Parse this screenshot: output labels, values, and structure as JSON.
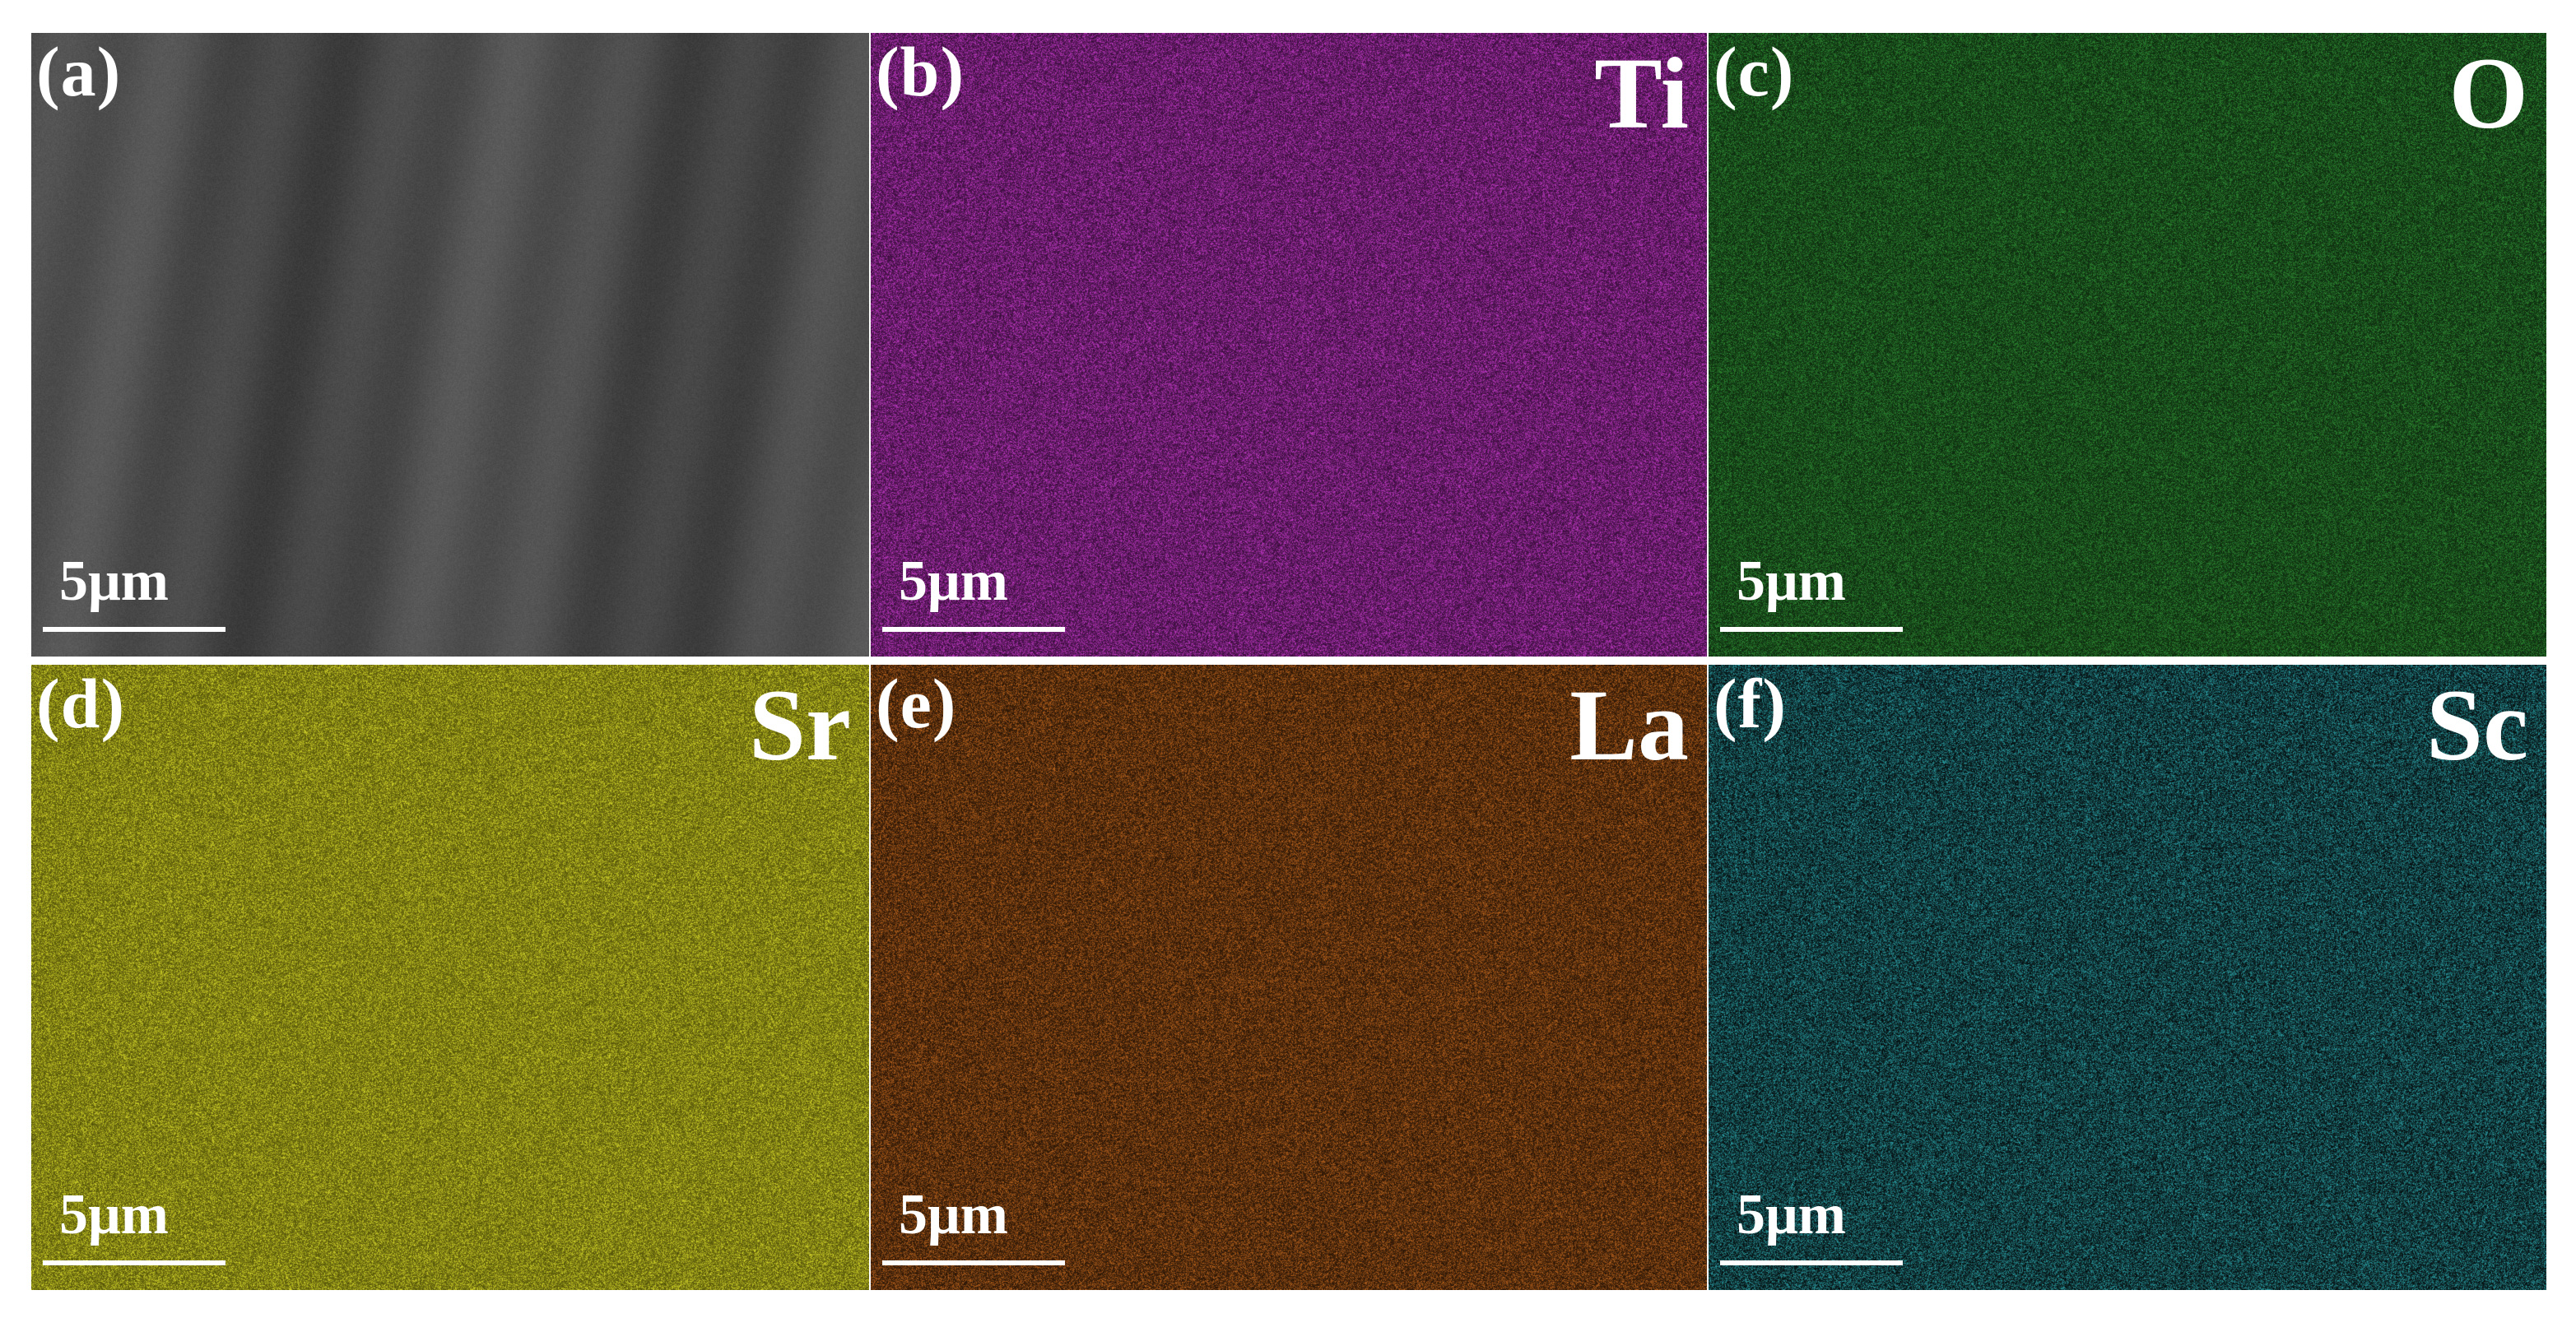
{
  "panels": [
    {
      "letter": "(a)",
      "element": "",
      "scale": "5μm",
      "colors": {
        "base": "#4d4d4d",
        "dot": "#6a6a6a"
      },
      "type": "sem"
    },
    {
      "letter": "(b)",
      "element": "Ti",
      "scale": "5μm",
      "colors": {
        "base": "#3a0d3c",
        "dot": "#c03ac4"
      },
      "type": "map"
    },
    {
      "letter": "(c)",
      "element": "O",
      "scale": "5μm",
      "colors": {
        "base": "#0d2a0e",
        "dot": "#2e8a33"
      },
      "type": "map"
    },
    {
      "letter": "(d)",
      "element": "Sr",
      "scale": "5μm",
      "colors": {
        "base": "#55550a",
        "dot": "#d5d52a"
      },
      "type": "map"
    },
    {
      "letter": "(e)",
      "element": "La",
      "scale": "5μm",
      "colors": {
        "base": "#2a1505",
        "dot": "#b8631e"
      },
      "type": "map"
    },
    {
      "letter": "(f)",
      "element": "Sc",
      "scale": "5μm",
      "colors": {
        "base": "#050c0d",
        "dot": "#2a9ea4"
      },
      "type": "map"
    }
  ]
}
